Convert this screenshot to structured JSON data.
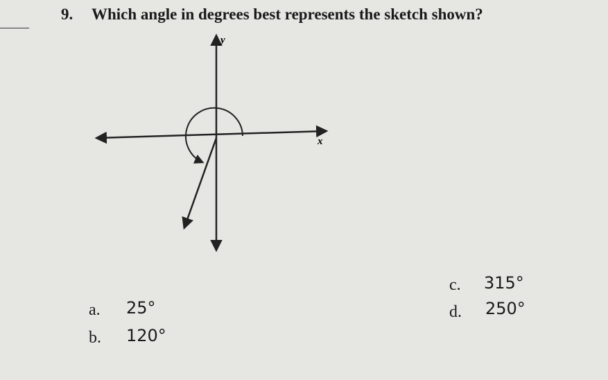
{
  "question": {
    "number": "9.",
    "text": "Which angle in degrees best represents the sketch shown?"
  },
  "sketch": {
    "y_label": "y",
    "x_label": "x"
  },
  "options": [
    {
      "letter": "a.",
      "value": "25°"
    },
    {
      "letter": "b.",
      "value": "120°"
    },
    {
      "letter": "c.",
      "value": "315°"
    },
    {
      "letter": "d.",
      "value": "250°"
    }
  ]
}
